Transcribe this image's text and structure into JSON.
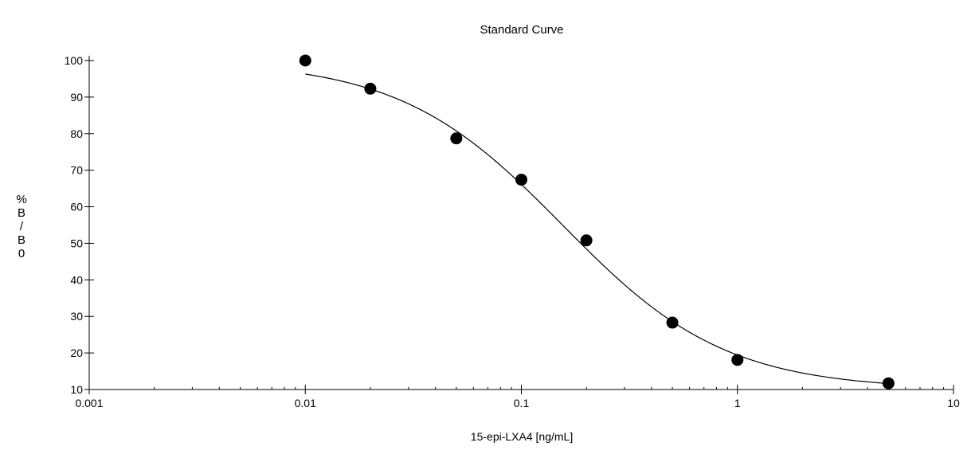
{
  "chart_data": {
    "type": "scatter",
    "title": "Standard Curve",
    "xlabel": "15-epi-LXA4 [ng/mL]",
    "ylabel": "%B/B0",
    "x_scale": "log",
    "xlim": [
      0.001,
      10
    ],
    "ylim": [
      10,
      100
    ],
    "x_ticks": [
      "0.001",
      "0.01",
      "0.1",
      "1",
      "10"
    ],
    "y_ticks": [
      "10",
      "20",
      "30",
      "40",
      "50",
      "60",
      "70",
      "80",
      "90",
      "100"
    ],
    "grid": false,
    "legend": "none",
    "series": [
      {
        "x": [
          0.01,
          0.02,
          0.05,
          0.1,
          0.2,
          0.5,
          1,
          5
        ],
        "y": [
          100,
          92.3,
          78.7,
          67.4,
          50.8,
          28.3,
          18.1,
          11.7
        ]
      }
    ],
    "fit_curve": {
      "type": "4PL",
      "bottom": 10,
      "top": 100,
      "ic50": 0.155,
      "hill": 1.15
    },
    "colors": {
      "points": "#000000",
      "curve": "#000000",
      "axes": "#000000"
    }
  }
}
